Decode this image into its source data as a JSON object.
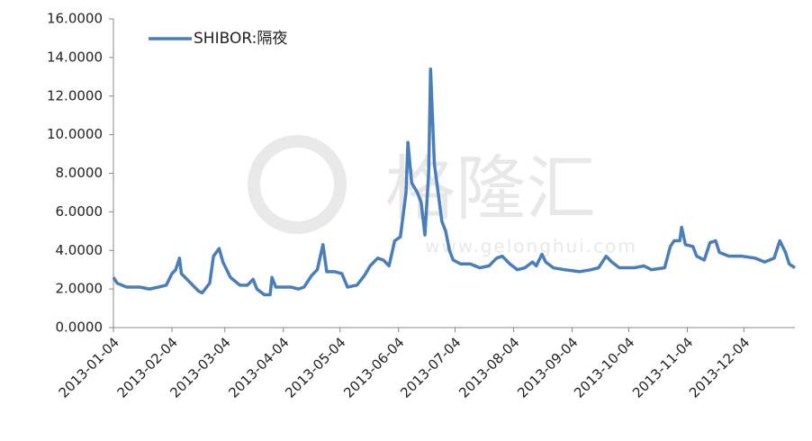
{
  "chart_data": {
    "type": "line",
    "watermark": {
      "brand": "格隆汇",
      "url": "www.gelonghui.com"
    },
    "legend": "top-left",
    "xlim": [
      "2013-01-04",
      "2013-12-31"
    ],
    "xticks": [
      "2013-01-04",
      "2013-02-04",
      "2013-03-04",
      "2013-04-04",
      "2013-05-04",
      "2013-06-04",
      "2013-07-04",
      "2013-08-04",
      "2013-09-04",
      "2013-10-04",
      "2013-11-04",
      "2013-12-04"
    ],
    "ylim": [
      0,
      16
    ],
    "yticks": [
      {
        "value": 0,
        "label": "0.0000"
      },
      {
        "value": 2,
        "label": "2.0000"
      },
      {
        "value": 4,
        "label": "4.0000"
      },
      {
        "value": 6,
        "label": "6.0000"
      },
      {
        "value": 8,
        "label": "8.0000"
      },
      {
        "value": 10,
        "label": "10.0000"
      },
      {
        "value": 12,
        "label": "12.0000"
      },
      {
        "value": 14,
        "label": "14.0000"
      },
      {
        "value": 16,
        "label": "16.0000"
      }
    ],
    "grid": false,
    "x": [
      "2013-01-04",
      "2013-01-06",
      "2013-01-11",
      "2013-01-18",
      "2013-01-23",
      "2013-01-28",
      "2013-02-01",
      "2013-02-04",
      "2013-02-06",
      "2013-02-08",
      "2013-02-09",
      "2013-02-13",
      "2013-02-18",
      "2013-02-20",
      "2013-02-24",
      "2013-02-26",
      "2013-03-01",
      "2013-03-03",
      "2013-03-07",
      "2013-03-12",
      "2013-03-16",
      "2013-03-19",
      "2013-03-21",
      "2013-03-25",
      "2013-03-28",
      "2013-03-29",
      "2013-03-31",
      "2013-04-03",
      "2013-04-08",
      "2013-04-12",
      "2013-04-15",
      "2013-04-19",
      "2013-04-22",
      "2013-04-25",
      "2013-04-27",
      "2013-05-01",
      "2013-05-05",
      "2013-05-08",
      "2013-05-13",
      "2013-05-17",
      "2013-05-20",
      "2013-05-24",
      "2013-05-27",
      "2013-05-30",
      "2013-06-02",
      "2013-06-05",
      "2013-06-08",
      "2013-06-09",
      "2013-06-11",
      "2013-06-14",
      "2013-06-16",
      "2013-06-18",
      "2013-06-20",
      "2013-06-21",
      "2013-06-23",
      "2013-06-25",
      "2013-06-27",
      "2013-06-29",
      "2013-07-01",
      "2013-07-03",
      "2013-07-07",
      "2013-07-12",
      "2013-07-17",
      "2013-07-22",
      "2013-07-26",
      "2013-07-29",
      "2013-08-02",
      "2013-08-06",
      "2013-08-10",
      "2013-08-14",
      "2013-08-16",
      "2013-08-19",
      "2013-08-21",
      "2013-08-25",
      "2013-08-31",
      "2013-09-08",
      "2013-09-14",
      "2013-09-18",
      "2013-09-22",
      "2013-09-25",
      "2013-09-29",
      "2013-10-07",
      "2013-10-12",
      "2013-10-16",
      "2013-10-23",
      "2013-10-26",
      "2013-10-28",
      "2013-10-31",
      "2013-11-01",
      "2013-11-03",
      "2013-11-07",
      "2013-11-09",
      "2013-11-13",
      "2013-11-16",
      "2013-11-19",
      "2013-11-21",
      "2013-11-26",
      "2013-12-03",
      "2013-12-10",
      "2013-12-15",
      "2013-12-20",
      "2013-12-23",
      "2013-12-26",
      "2013-12-28",
      "2013-12-31"
    ],
    "series": [
      {
        "name": "SHIBOR:隔夜",
        "color": "#4a7ebb",
        "values": [
          2.6,
          2.3,
          2.1,
          2.1,
          2.0,
          2.1,
          2.2,
          2.8,
          3.0,
          3.6,
          2.8,
          2.4,
          1.9,
          1.8,
          2.3,
          3.7,
          4.1,
          3.4,
          2.6,
          2.2,
          2.2,
          2.5,
          2.0,
          1.7,
          1.7,
          2.6,
          2.1,
          2.1,
          2.1,
          2.0,
          2.1,
          2.7,
          3.0,
          4.3,
          2.9,
          2.9,
          2.8,
          2.1,
          2.2,
          2.7,
          3.2,
          3.6,
          3.5,
          3.2,
          4.5,
          4.7,
          7.0,
          9.6,
          7.5,
          7.0,
          6.5,
          4.8,
          8.0,
          13.4,
          8.5,
          7.0,
          5.5,
          5.0,
          4.0,
          3.5,
          3.3,
          3.3,
          3.1,
          3.2,
          3.6,
          3.7,
          3.3,
          3.0,
          3.1,
          3.4,
          3.2,
          3.8,
          3.4,
          3.1,
          3.0,
          2.9,
          3.0,
          3.1,
          3.7,
          3.4,
          3.1,
          3.1,
          3.2,
          3.0,
          3.1,
          4.2,
          4.5,
          4.5,
          5.2,
          4.3,
          4.2,
          3.7,
          3.5,
          4.4,
          4.5,
          3.9,
          3.7,
          3.7,
          3.6,
          3.4,
          3.6,
          4.5,
          3.9,
          3.3,
          3.1
        ]
      }
    ]
  }
}
